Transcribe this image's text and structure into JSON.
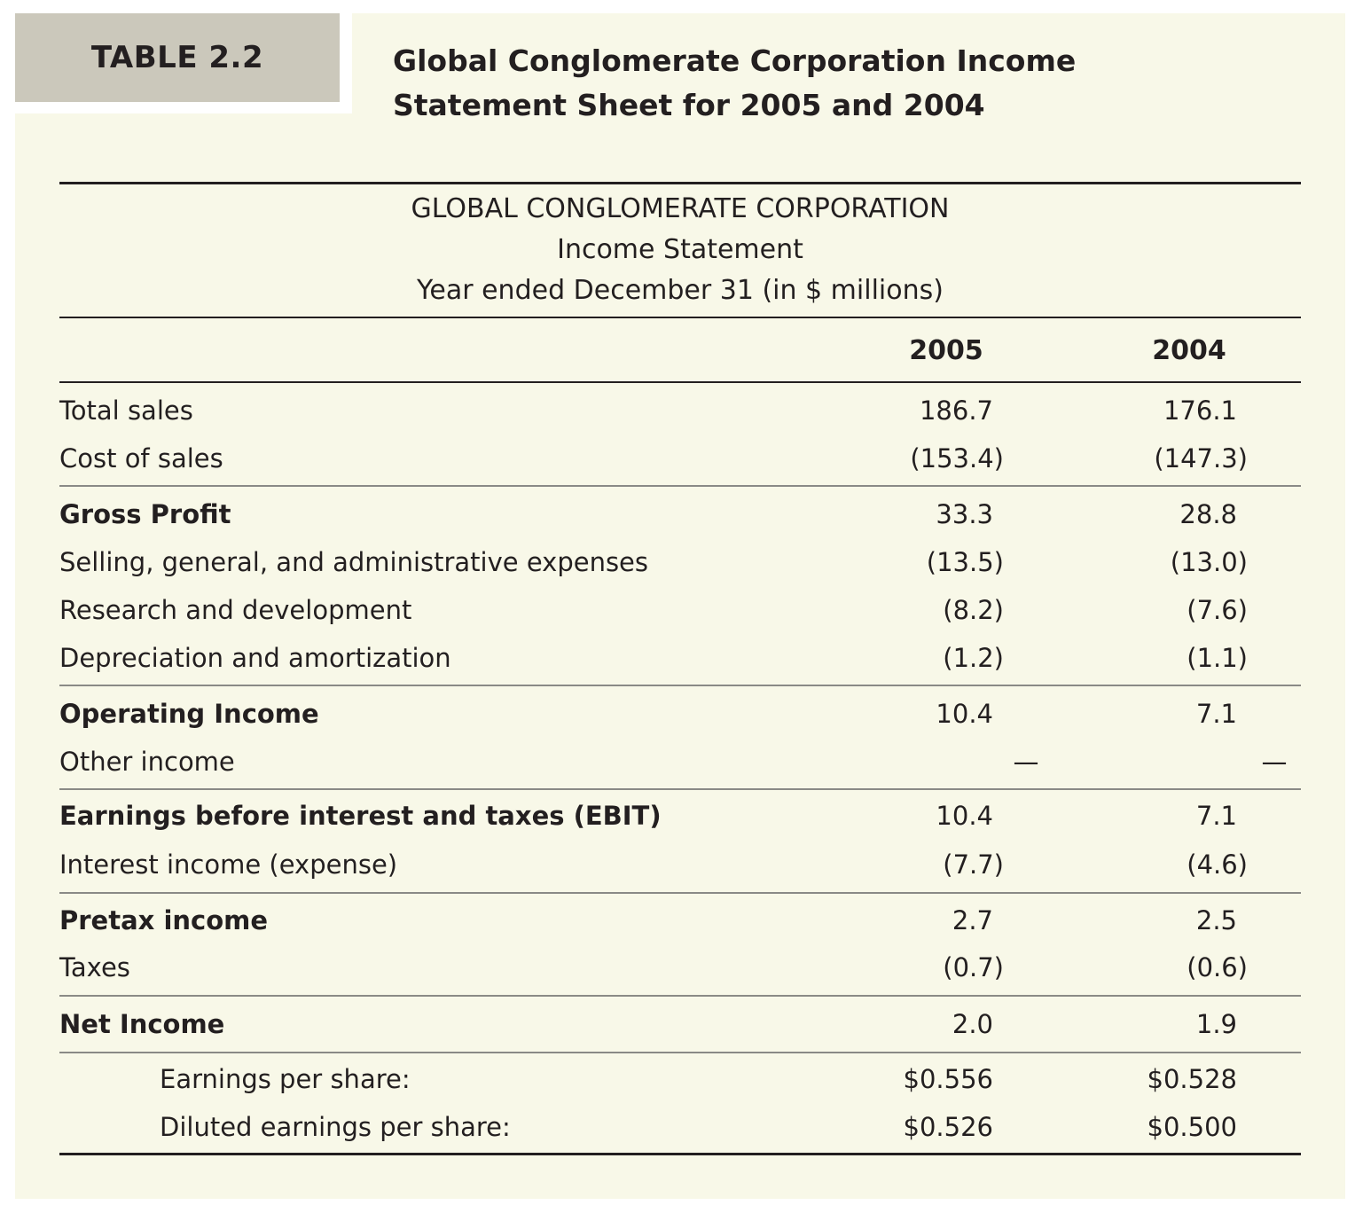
{
  "table_label": "TABLE 2.2",
  "title_line1": "Global Conglomerate Corporation Income",
  "title_line2": "Statement Sheet for 2005 and 2004",
  "header": {
    "company": "GLOBAL CONGLOMERATE CORPORATION",
    "statement": "Income Statement",
    "period": "Year ended December 31 (in $ millions)"
  },
  "columns": [
    "2005",
    "2004"
  ],
  "rows": [
    {
      "label": "Total sales",
      "v2005": "186.7",
      "v2004": "176.1",
      "bold": false
    },
    {
      "label": "Cost of sales",
      "v2005": "(153.4)",
      "v2004": "(147.3)",
      "bold": false
    },
    {
      "label": "Gross Profit",
      "v2005": "33.3",
      "v2004": "28.8",
      "bold": true
    },
    {
      "label": "Selling, general, and administrative expenses",
      "v2005": "(13.5)",
      "v2004": "(13.0)",
      "bold": false
    },
    {
      "label": "Research and development",
      "v2005": "(8.2)",
      "v2004": "(7.6)",
      "bold": false
    },
    {
      "label": "Depreciation and amortization",
      "v2005": "(1.2)",
      "v2004": "(1.1)",
      "bold": false
    },
    {
      "label": "Operating Income",
      "v2005": "10.4",
      "v2004": "7.1",
      "bold": true
    },
    {
      "label": "Other income",
      "v2005": "—",
      "v2004": "—",
      "bold": false
    },
    {
      "label": "Earnings before interest and taxes (EBIT)",
      "v2005": "10.4",
      "v2004": "7.1",
      "bold": true
    },
    {
      "label": "Interest income (expense)",
      "v2005": "(7.7)",
      "v2004": "(4.6)",
      "bold": false
    },
    {
      "label": "Pretax income",
      "v2005": "2.7",
      "v2004": "2.5",
      "bold": true
    },
    {
      "label": "Taxes",
      "v2005": "(0.7)",
      "v2004": "(0.6)",
      "bold": false
    },
    {
      "label": "Net Income",
      "v2005": "2.0",
      "v2004": "1.9",
      "bold": true
    },
    {
      "label": "Earnings per share:",
      "v2005": "$0.556",
      "v2004": "$0.528",
      "bold": false,
      "indent": true
    },
    {
      "label": "Diluted earnings per share:",
      "v2005": "$0.526",
      "v2004": "$0.500",
      "bold": false,
      "indent": true
    }
  ]
}
